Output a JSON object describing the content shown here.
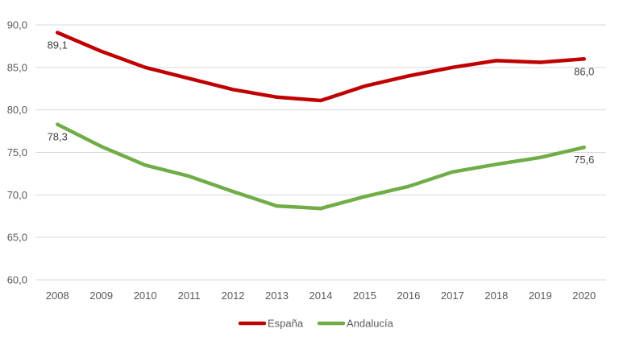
{
  "chart_data": {
    "type": "line",
    "title": "",
    "xlabel": "",
    "ylabel": "",
    "x": [
      "2008",
      "2009",
      "2010",
      "2011",
      "2012",
      "2013",
      "2014",
      "2015",
      "2016",
      "2017",
      "2018",
      "2019",
      "2020"
    ],
    "ylim": [
      60,
      90
    ],
    "yticks": [
      "60,0",
      "65,0",
      "70,0",
      "75,0",
      "80,0",
      "85,0",
      "90,0"
    ],
    "grid": true,
    "legend_position": "bottom",
    "series": [
      {
        "name": "España",
        "color": "#c00000",
        "values": [
          89.1,
          86.9,
          85.0,
          83.7,
          82.4,
          81.5,
          81.1,
          82.8,
          84.0,
          85.0,
          85.8,
          85.6,
          86.0
        ],
        "labels": [
          {
            "index": 0,
            "text": "89,1"
          },
          {
            "index": 12,
            "text": "86,0"
          }
        ]
      },
      {
        "name": "Andalucía",
        "color": "#70ad47",
        "values": [
          78.3,
          75.7,
          73.5,
          72.2,
          70.4,
          68.7,
          68.4,
          69.8,
          71.0,
          72.7,
          73.6,
          74.4,
          75.6
        ],
        "labels": [
          {
            "index": 0,
            "text": "78,3"
          },
          {
            "index": 12,
            "text": "75,6"
          }
        ]
      }
    ]
  }
}
